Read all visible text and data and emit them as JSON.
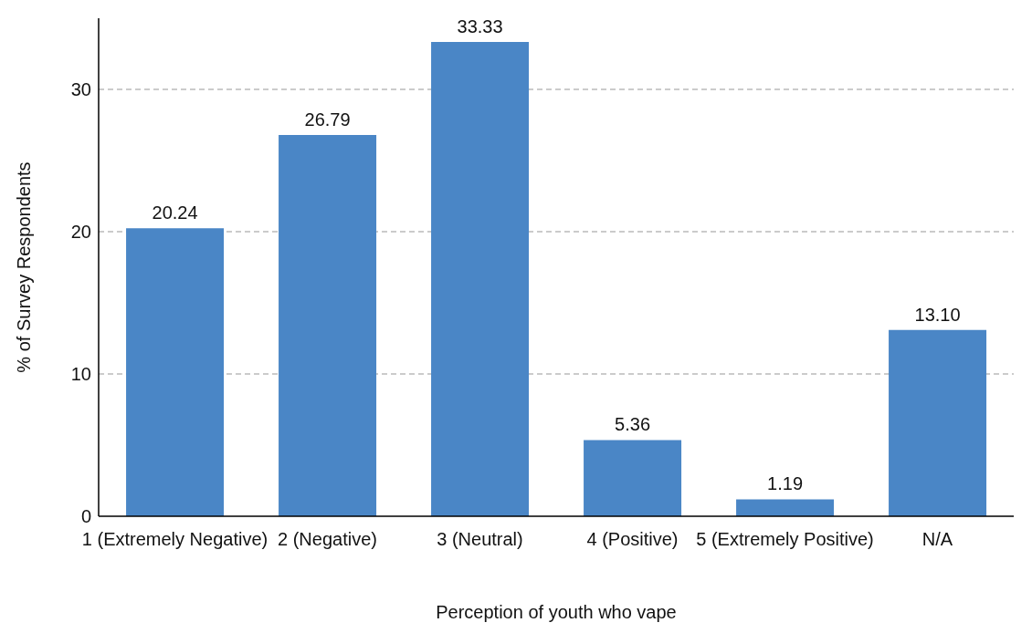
{
  "chart_data": {
    "type": "bar",
    "xlabel": "Perception of youth who vape",
    "ylabel": "% of Survey Respondents",
    "categories": [
      "1 (Extremely Negative)",
      "2 (Negative)",
      "3 (Neutral)",
      "4 (Positive)",
      "5 (Extremely Positive)",
      "N/A"
    ],
    "values": [
      20.24,
      26.79,
      33.33,
      5.36,
      1.19,
      13.1
    ],
    "value_labels": [
      "20.24",
      "26.79",
      "33.33",
      "5.36",
      "1.19",
      "13.10"
    ],
    "color": "#4a86c6",
    "ylim": [
      0,
      35
    ],
    "yticks": [
      0,
      10,
      20,
      30
    ],
    "grid": "y"
  }
}
